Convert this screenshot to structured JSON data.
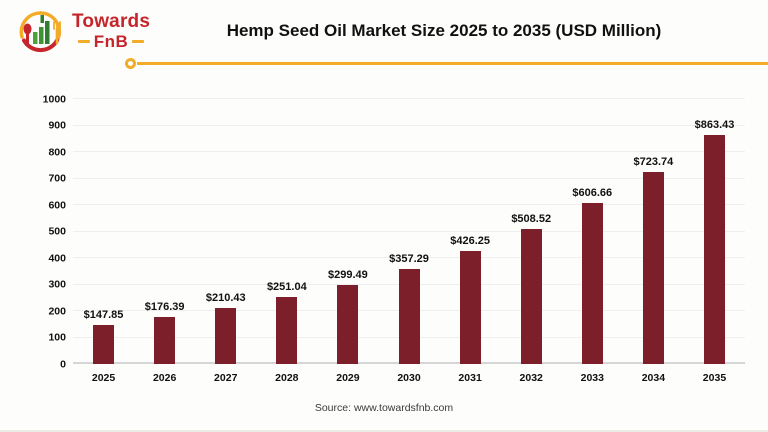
{
  "logo": {
    "line1": "Towards",
    "line2": "FnB"
  },
  "header": {
    "title": "Hemp Seed Oil Market Size 2025 to 2035 (USD Million)"
  },
  "chart_data": {
    "type": "bar",
    "title": "Hemp Seed Oil Market Size 2025 to 2035 (USD Million)",
    "categories": [
      "2025",
      "2026",
      "2027",
      "2028",
      "2029",
      "2030",
      "2031",
      "2032",
      "2033",
      "2034",
      "2035"
    ],
    "values": [
      147.85,
      176.39,
      210.43,
      251.04,
      299.49,
      357.29,
      426.25,
      508.52,
      606.66,
      723.74,
      863.43
    ],
    "value_labels": [
      "$147.85",
      "$176.39",
      "$210.43",
      "$251.04",
      "$299.49",
      "$357.29",
      "$426.25",
      "$508.52",
      "$606.66",
      "$723.74",
      "$863.43"
    ],
    "xlabel": "",
    "ylabel": "",
    "ylim": [
      0,
      1000
    ],
    "ytick_step": 100,
    "grid": true,
    "legend": "none",
    "bar_color": "#7d1f2b"
  },
  "footer": {
    "source": "Source: www.towardsfnb.com"
  },
  "colors": {
    "bar": "#7d1f2b",
    "accent_yellow": "#f3ac28",
    "logo_red": "#c4262c",
    "logo_green": "#3e9435",
    "title_text": "#111111",
    "gridline": "#efefef",
    "axis_line": "#d6d6d6"
  }
}
